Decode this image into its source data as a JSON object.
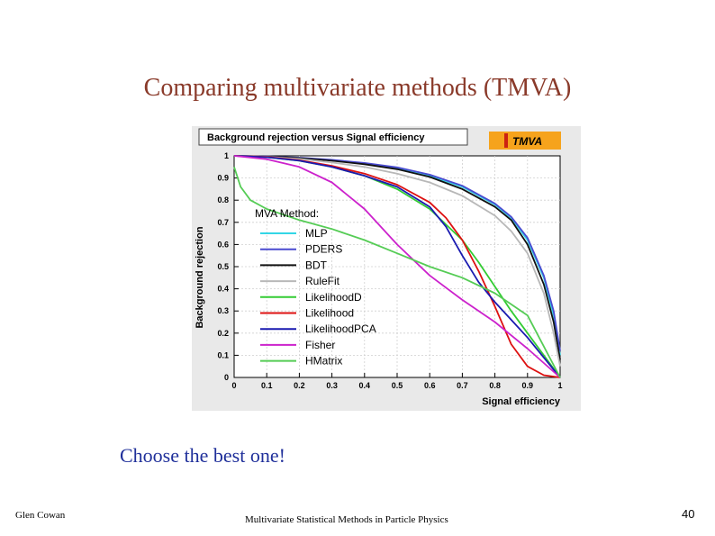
{
  "slide": {
    "title": "Comparing multivariate methods (TMVA)",
    "tagline": "Choose the best one!",
    "author": "Glen Cowan",
    "course": "Multivariate Statistical Methods in Particle Physics",
    "page_number": "40"
  },
  "chart_data": {
    "type": "line",
    "title": "Background rejection versus Signal efficiency",
    "logo_text": "TMVA",
    "xlabel": "Signal efficiency",
    "ylabel": "Background rejection",
    "xlim": [
      0,
      1
    ],
    "ylim": [
      0,
      1
    ],
    "x_ticks": [
      "0",
      "0.1",
      "0.2",
      "0.3",
      "0.4",
      "0.5",
      "0.6",
      "0.7",
      "0.8",
      "0.9",
      "1"
    ],
    "y_ticks": [
      "0",
      "0.1",
      "0.2",
      "0.3",
      "0.4",
      "0.5",
      "0.6",
      "0.7",
      "0.8",
      "0.9",
      "1"
    ],
    "grid": true,
    "legend_title": "MVA Method:",
    "legend_placement": "center-left",
    "series": [
      {
        "name": "MLP",
        "color": "#33d6e6",
        "x": [
          0,
          0.1,
          0.2,
          0.3,
          0.4,
          0.5,
          0.6,
          0.7,
          0.8,
          0.85,
          0.9,
          0.95,
          0.98,
          1
        ],
        "y": [
          1,
          0.997,
          0.99,
          0.98,
          0.965,
          0.945,
          0.91,
          0.86,
          0.78,
          0.72,
          0.62,
          0.45,
          0.28,
          0.1
        ]
      },
      {
        "name": "PDERS",
        "color": "#4a4ad0",
        "x": [
          0,
          0.1,
          0.2,
          0.3,
          0.4,
          0.5,
          0.6,
          0.7,
          0.8,
          0.85,
          0.9,
          0.95,
          0.98,
          1
        ],
        "y": [
          1,
          0.998,
          0.992,
          0.982,
          0.968,
          0.948,
          0.915,
          0.865,
          0.785,
          0.725,
          0.63,
          0.46,
          0.3,
          0.12
        ]
      },
      {
        "name": "BDT",
        "color": "#111111",
        "x": [
          0,
          0.1,
          0.2,
          0.3,
          0.4,
          0.5,
          0.6,
          0.7,
          0.8,
          0.85,
          0.9,
          0.95,
          0.98,
          1
        ],
        "y": [
          1,
          0.997,
          0.99,
          0.978,
          0.962,
          0.94,
          0.905,
          0.85,
          0.77,
          0.71,
          0.6,
          0.42,
          0.25,
          0.08
        ]
      },
      {
        "name": "RuleFit",
        "color": "#b8b8b8",
        "x": [
          0,
          0.1,
          0.2,
          0.3,
          0.4,
          0.5,
          0.6,
          0.7,
          0.8,
          0.85,
          0.9,
          0.95,
          0.98,
          1
        ],
        "y": [
          1,
          0.996,
          0.986,
          0.97,
          0.95,
          0.92,
          0.88,
          0.82,
          0.73,
          0.66,
          0.56,
          0.38,
          0.2,
          0.05
        ]
      },
      {
        "name": "LikelihoodD",
        "color": "#33cc33",
        "x": [
          0,
          0.1,
          0.2,
          0.3,
          0.4,
          0.5,
          0.6,
          0.7,
          0.75,
          0.8,
          0.85,
          0.9,
          0.95,
          1
        ],
        "y": [
          1,
          0.994,
          0.978,
          0.95,
          0.91,
          0.85,
          0.76,
          0.62,
          0.52,
          0.41,
          0.3,
          0.2,
          0.1,
          0
        ]
      },
      {
        "name": "Likelihood",
        "color": "#dd1111",
        "x": [
          0,
          0.1,
          0.2,
          0.3,
          0.4,
          0.5,
          0.6,
          0.65,
          0.7,
          0.75,
          0.8,
          0.85,
          0.9,
          0.95,
          1
        ],
        "y": [
          1,
          0.995,
          0.98,
          0.955,
          0.92,
          0.87,
          0.79,
          0.72,
          0.62,
          0.48,
          0.32,
          0.15,
          0.05,
          0.01,
          0
        ]
      },
      {
        "name": "LikelihoodPCA",
        "color": "#1a1ab0",
        "x": [
          0,
          0.1,
          0.2,
          0.3,
          0.4,
          0.5,
          0.6,
          0.65,
          0.7,
          0.75,
          0.8,
          0.85,
          0.9,
          0.95,
          1
        ],
        "y": [
          1,
          0.994,
          0.978,
          0.95,
          0.91,
          0.86,
          0.77,
          0.68,
          0.55,
          0.43,
          0.34,
          0.26,
          0.18,
          0.09,
          0
        ]
      },
      {
        "name": "Fisher",
        "color": "#cc22cc",
        "x": [
          0,
          0.1,
          0.2,
          0.3,
          0.4,
          0.5,
          0.6,
          0.7,
          0.8,
          0.9,
          1
        ],
        "y": [
          1,
          0.985,
          0.95,
          0.88,
          0.76,
          0.6,
          0.46,
          0.35,
          0.25,
          0.13,
          0
        ]
      },
      {
        "name": "HMatrix",
        "color": "#55cc55",
        "x": [
          0,
          0.02,
          0.05,
          0.1,
          0.2,
          0.3,
          0.4,
          0.5,
          0.6,
          0.7,
          0.8,
          0.9,
          1
        ],
        "y": [
          0.95,
          0.86,
          0.8,
          0.76,
          0.71,
          0.67,
          0.62,
          0.56,
          0.5,
          0.45,
          0.38,
          0.28,
          0
        ]
      }
    ]
  }
}
